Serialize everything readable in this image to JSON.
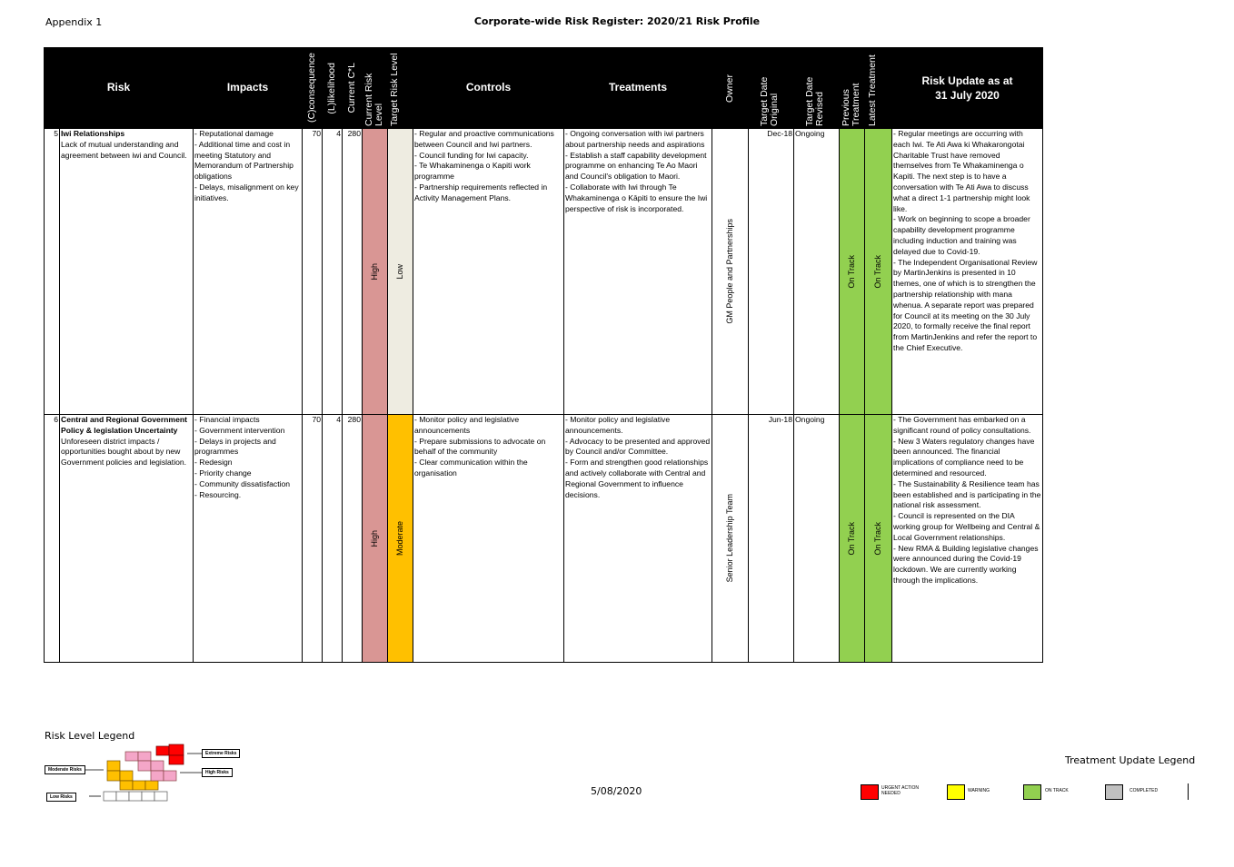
{
  "header": {
    "appendix": "Appendix 1",
    "title": "Corporate-wide Risk Register: 2020/21 Risk Profile"
  },
  "columns": {
    "risk": "Risk",
    "impacts": "Impacts",
    "consequence": "(C)consequence",
    "likelihood": "(L)likelihood",
    "current_cl": "Current C*L",
    "current_level": "Current Risk Level",
    "target_level": "Target Risk Level",
    "controls": "Controls",
    "treatments": "Treatments",
    "owner": "Owner",
    "target_original": "Target Date Original",
    "target_revised": "Target Date Revised",
    "previous_treatment": "Previous Treatment",
    "latest_treatment": "Latest Treatment",
    "update": "Risk Update as at 31 July 2020"
  },
  "rows": [
    {
      "number": "5",
      "title": "Iwi Relationships",
      "description": "Lack of mutual understanding and agreement between iwi and Council.",
      "impacts": "- Reputational damage\n- Additional time and cost in meeting Statutory and Memorandum of Partnership obligations\n- Delays, misalignment on key initiatives.",
      "consequence": "70",
      "likelihood": "4",
      "cl": "280",
      "current_level": "High",
      "target_level": "Low",
      "controls": "- Regular and proactive communications between Council and Iwi partners.\n- Council funding for Iwi capacity.\n- Te Whakaminenga o Kapiti work programme\n-  Partnership requirements reflected in Activity Management Plans.",
      "treatments": "- Ongoing conversation with iwi partners about partnership needs and aspirations\n- Establish a staff capability development programme on enhancing Te Ao Maori and Council's obligation to Maori.\n- Collaborate with Iwi through Te Whakaminenga o Kāpiti to ensure the Iwi perspective of risk is incorporated.",
      "owner": "GM People and Partnerships",
      "target_original": "Dec-18",
      "target_revised": "Ongoing",
      "previous": "On Track",
      "latest": "On Track",
      "update": "- Regular meetings are occurring with each Iwi.  Te Ati Awa ki Whakarongotai Charitable Trust have removed themselves from Te Whakaminenga o Kapiti. The next step is to have a conversation with Te Ati Awa to discuss what a direct 1-1 partnership might look like.\n- Work on beginning to scope a broader capability development programme including induction and training was delayed due to Covid-19.\n- The Independent Organisational Review by MartinJenkins is presented in 10 themes, one of which is to strengthen the partnership relationship with mana whenua. A separate report was prepared for Council at its meeting on the 30 July 2020, to formally receive the final report from MartinJenkins and refer the report to the Chief Executive."
    },
    {
      "number": "6",
      "title": "Central and Regional Government Policy & legislation Uncertainty",
      "description": "Unforeseen district impacts / opportunities bought about by new Government policies and legislation.",
      "impacts": "- Financial impacts\n- Government intervention\n- Delays in projects and programmes\n- Redesign\n- Priority change\n- Community dissatisfaction\n- Resourcing.",
      "consequence": "70",
      "likelihood": "4",
      "cl": "280",
      "current_level": "High",
      "target_level": "Moderate",
      "controls": "- Monitor policy and legislative announcements\n- Prepare submissions to advocate on behalf of the community\n- Clear communication within the organisation",
      "treatments": "- Monitor policy and legislative announcements.\n- Advocacy to be presented and approved by Council and/or Committee.\n- Form and strengthen good relationships and actively collaborate with Central and Regional Government to influence decisions.",
      "owner": "Senior Leadership Team",
      "target_original": "Jun-18",
      "target_revised": "Ongoing",
      "previous": "On Track",
      "latest": "On Track",
      "update": "- The Government has embarked on a significant round of policy consultations.\n- New 3 Waters regulatory changes have been announced.  The financial implications of compliance need to be determined and resourced.\n- The Sustainability & Resilience team has been established and is participating in the national risk assessment.\n- Council is represented on the DIA working group for Wellbeing and Central & Local Government relationships.\n- New RMA & Building legislative changes were announced during the Covid-19 lockdown. We are currently working through the implications."
    }
  ],
  "risk_legend": {
    "title": "Risk Level Legend",
    "extreme": "Extreme Risks",
    "high": "High Risks",
    "moderate": "Moderate Risks",
    "low": "Low Risks"
  },
  "date": "5/08/2020",
  "treatment_legend": {
    "title": "Treatment Update Legend",
    "urgent": "URGENT ACTION NEEDED",
    "warning": "WARNING",
    "on_track": "ON TRACK",
    "completed": "COMPLETED",
    "colors": {
      "urgent": "#ff0000",
      "warning": "#ffff00",
      "on_track": "#92d050",
      "completed": "#c0c0c0"
    }
  }
}
